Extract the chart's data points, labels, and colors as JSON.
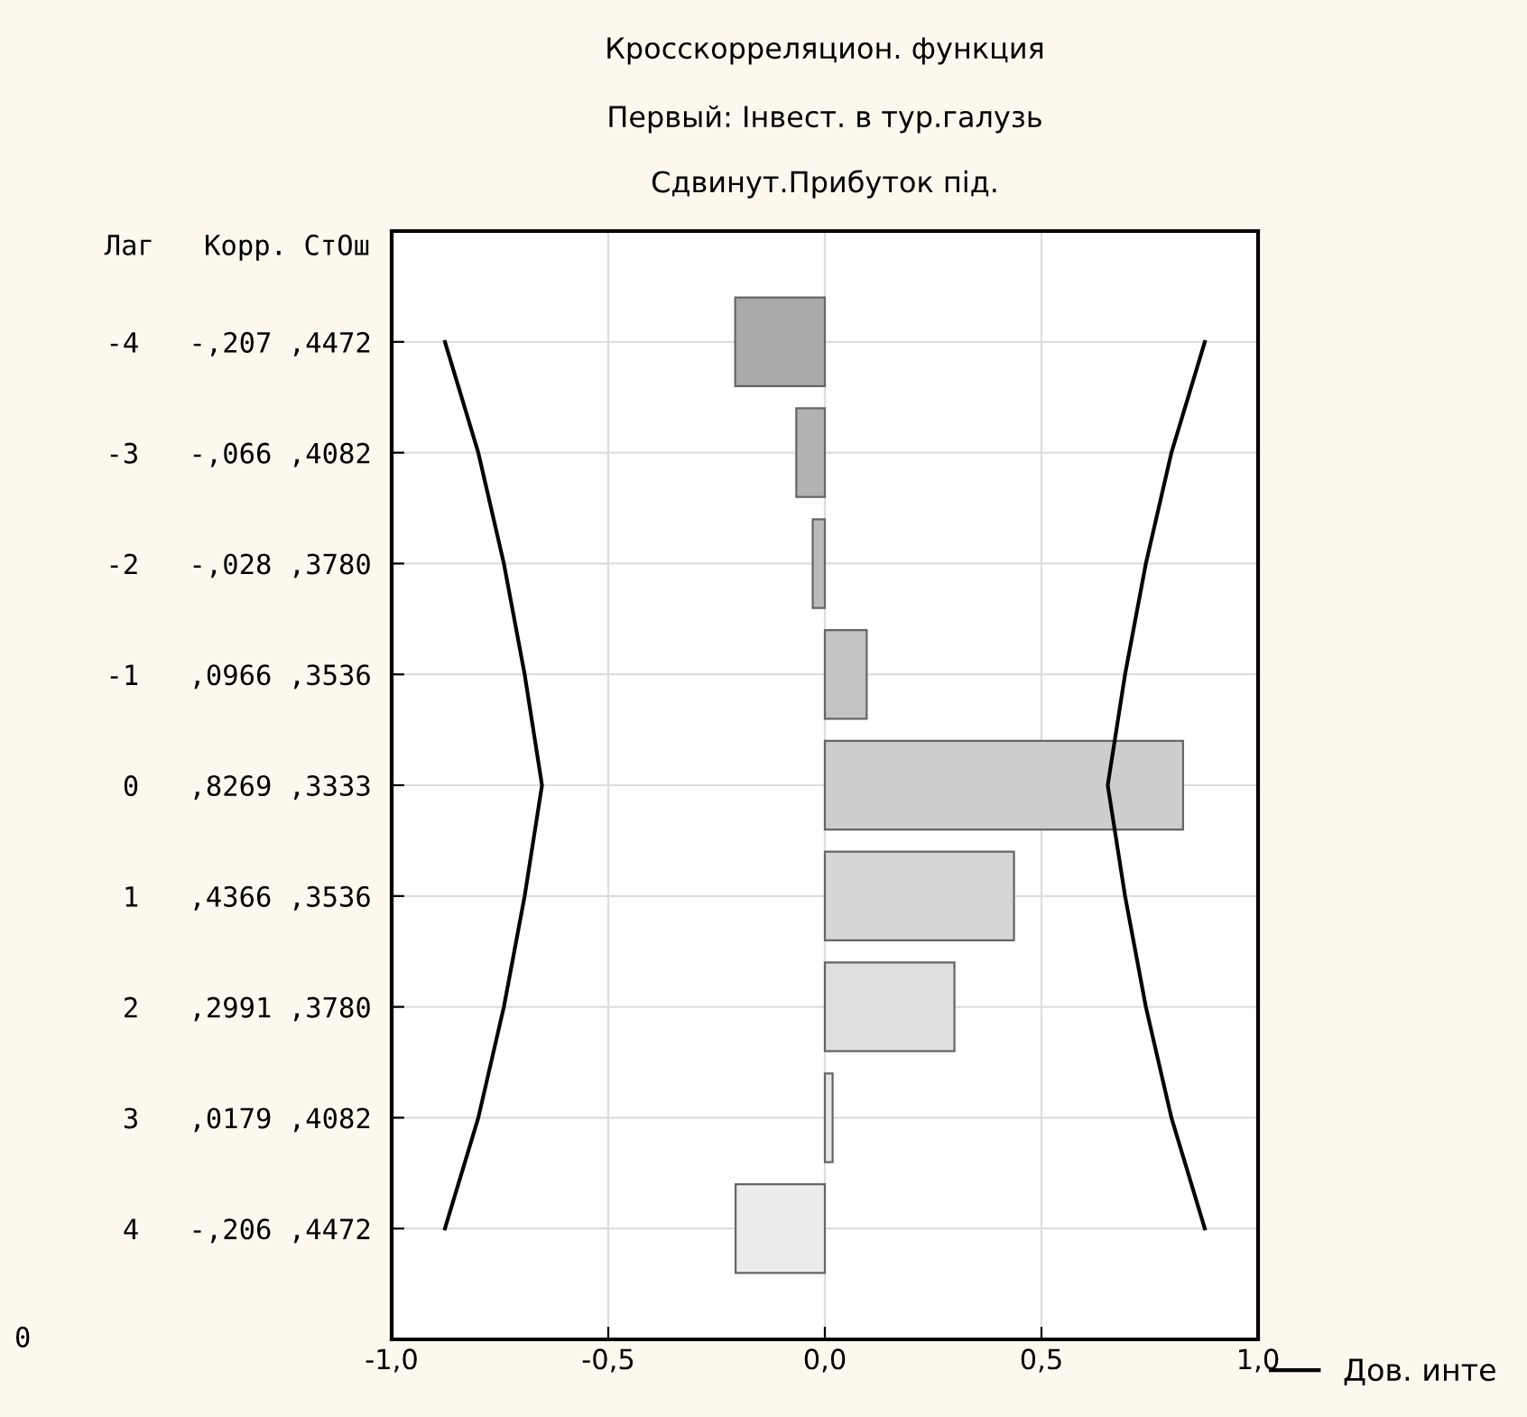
{
  "chart_data": {
    "type": "bar",
    "orientation": "horizontal",
    "title": "Кросскорреляцион. функция",
    "subtitle": "Первый: Інвест. в тур.галузь\nСдвинут.Прибуток під.",
    "ylabel": "Лаг   Корр. СтОш",
    "categories": [
      "-4   -,207 ,4472",
      "-3   -,066 ,4082",
      "-2   -,028 ,3780",
      "-1   ,0966 ,3536",
      " 0   ,8269 ,3333",
      " 1   ,4366 ,3536",
      " 2   ,2991 ,3780",
      " 3   ,0179 ,4082",
      " 4   -,206 ,4472"
    ],
    "values": [
      -0.207,
      -0.066,
      -0.028,
      0.0966,
      0.8269,
      0.4366,
      0.2991,
      0.0179,
      -0.206
    ],
    "colors": [
      "#aaaaaa",
      "#b2b2b2",
      "#bbbbbb",
      "#c4c4c4",
      "#cdcdcd",
      "#d6d6d6",
      "#dfdfdf",
      "#e6e6e6",
      "#ececec"
    ],
    "series": [
      {
        "type": "line",
        "name": "Дов. инте",
        "color": "#000000",
        "values": [
          0.877,
          0.8,
          0.741,
          0.693,
          0.653,
          0.693,
          0.741,
          0.8,
          0.877
        ]
      },
      {
        "type": "line",
        "color": "#000000",
        "values": [
          -0.877,
          -0.8,
          -0.741,
          -0.693,
          -0.653,
          -0.693,
          -0.741,
          -0.8,
          -0.877
        ]
      }
    ],
    "xlim": [
      -1,
      1
    ],
    "xticks": [
      {
        "value": -1,
        "label": "-1,0"
      },
      {
        "value": -0.5,
        "label": "-0,5"
      },
      {
        "value": 0,
        "label": "0,0"
      },
      {
        "value": 0.5,
        "label": "0,5"
      },
      {
        "value": 1,
        "label": "1,0"
      }
    ],
    "annotations": [
      "0"
    ],
    "grid": true,
    "legend": "bottom right"
  }
}
